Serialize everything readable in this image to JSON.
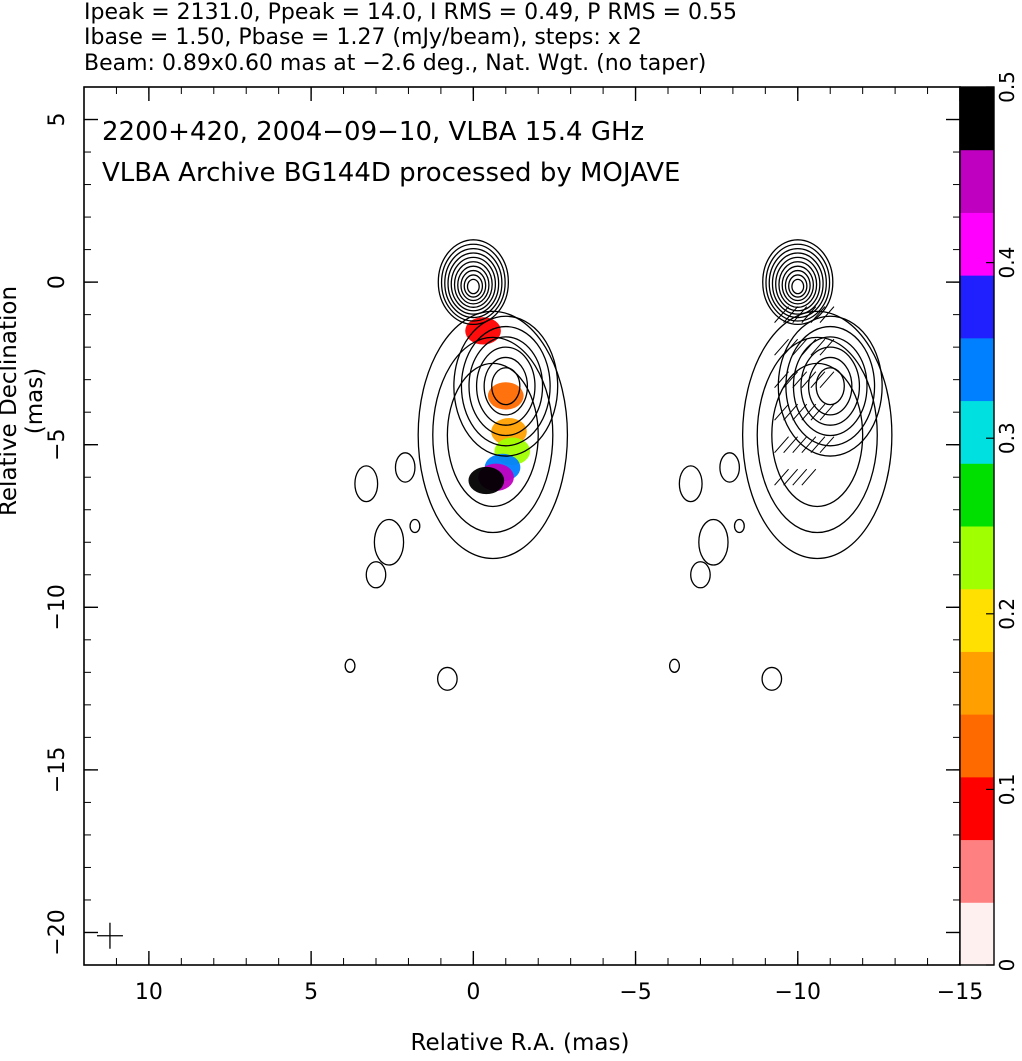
{
  "header": {
    "line1": "Ipeak = 2131.0, Ppeak = 14.0, I RMS = 0.49, P RMS = 0.55",
    "line2": "Ibase = 1.50, Pbase = 1.27 (mJy/beam), steps: x 2",
    "line3": "Beam: 0.89x0.60 mas at −2.6 deg., Nat. Wgt. (no taper)"
  },
  "chart_data": {
    "type": "heatmap",
    "title_line1": "2200+420, 2004−09−10, VLBA 15.4 GHz",
    "title_line2": "VLBA Archive BG144D processed by MOJAVE",
    "xlabel": "Relative R.A. (mas)",
    "ylabel": "Relative Declination (mas)",
    "xlim": [
      12,
      -15
    ],
    "ylim": [
      -21,
      6
    ],
    "xticks": [
      10,
      5,
      0,
      -5,
      -10,
      -15
    ],
    "xtick_labels": [
      "10",
      "5",
      "0",
      "−5",
      "−10",
      "−15"
    ],
    "yticks": [
      5,
      0,
      -5,
      -10,
      -15,
      -20
    ],
    "ytick_labels": [
      "5",
      "0",
      "−5",
      "−10",
      "−15",
      "−20"
    ],
    "colorbar": {
      "range": [
        0,
        0.5
      ],
      "ticks": [
        0,
        0.1,
        0.2,
        0.3,
        0.4,
        0.5
      ],
      "tick_labels": [
        "0",
        "0.1",
        "0.2",
        "0.3",
        "0.4",
        "0.5"
      ],
      "colors": [
        "#fff0f0",
        "#ff8080",
        "#ff0000",
        "#ff6a00",
        "#ffa000",
        "#ffe000",
        "#a0ff00",
        "#00e000",
        "#00e0e0",
        "#0080ff",
        "#2020ff",
        "#ff00ff",
        "#c000c0",
        "#000000"
      ]
    },
    "contour_peak_mJy_per_beam": 2131.0,
    "contour_base_mJy_per_beam": 1.5,
    "contour_step_factor": 2,
    "left_panel_contour_centers": [
      {
        "x": 0,
        "y": 0,
        "levels": 10
      },
      {
        "x": -1.0,
        "y": -3.2,
        "levels": 6
      },
      {
        "x": -0.6,
        "y": -6.2,
        "levels": 3
      }
    ],
    "right_panel_offset_x": -10,
    "fractional_polarization_regions": [
      {
        "x": -0.3,
        "y": -1.5,
        "value": 0.06
      },
      {
        "x": -1.0,
        "y": -3.5,
        "value": 0.11
      },
      {
        "x": -1.1,
        "y": -4.6,
        "value": 0.15
      },
      {
        "x": -1.2,
        "y": -5.2,
        "value": 0.22
      },
      {
        "x": -0.9,
        "y": -5.7,
        "value": 0.33
      },
      {
        "x": -0.7,
        "y": -6.0,
        "value": 0.45
      },
      {
        "x": -0.4,
        "y": -6.1,
        "value": 0.5
      }
    ],
    "beam": {
      "major_mas": 0.89,
      "minor_mas": 0.6,
      "pa_deg": -2.6
    }
  }
}
